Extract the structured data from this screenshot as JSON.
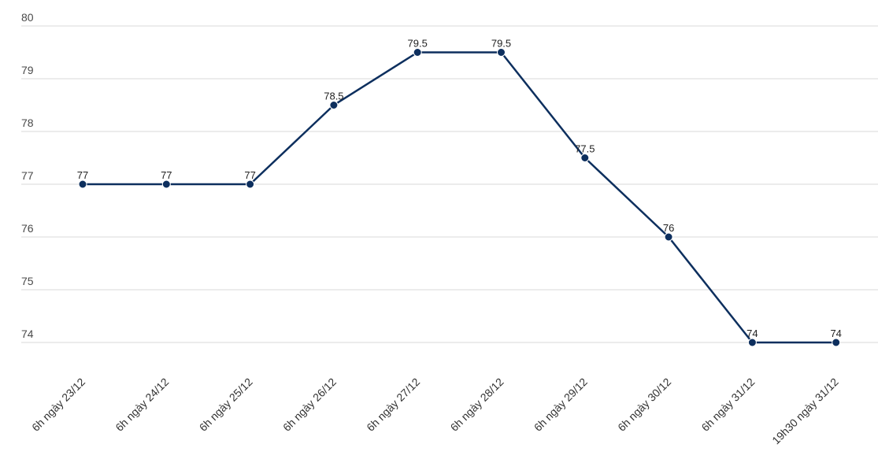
{
  "chart_data": {
    "type": "line",
    "title": "",
    "xlabel": "",
    "ylabel": "",
    "categories": [
      "6h ngày 23/12",
      "6h ngày 24/12",
      "6h ngày 25/12",
      "6h ngày 26/12",
      "6h ngày 27/12",
      "6h ngày 28/12",
      "6h ngày 29/12",
      "6h ngày 30/12",
      "6h ngày 31/12",
      "19h30 ngày 31/12"
    ],
    "series": [
      {
        "values": [
          77,
          77,
          77,
          78.5,
          79.5,
          79.5,
          77.5,
          76,
          74,
          74
        ],
        "labels": [
          "77",
          "77",
          "77",
          "78.5",
          "79.5",
          "79.5",
          "77.5",
          "76",
          "74",
          "74"
        ],
        "color": "#0d2f5e"
      }
    ],
    "yticks": [
      "74",
      "75",
      "76",
      "77",
      "78",
      "79",
      "80"
    ],
    "ylim": [
      74,
      80
    ],
    "grid": true,
    "legend": "none"
  }
}
